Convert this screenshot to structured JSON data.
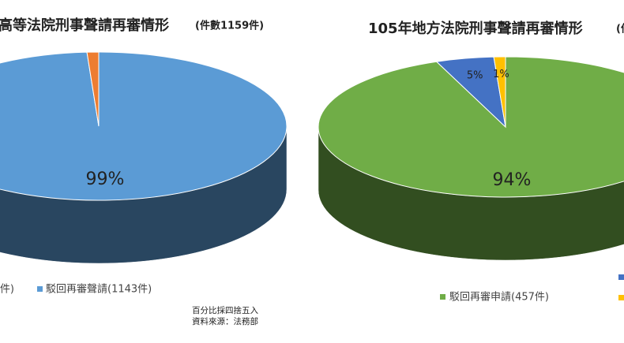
{
  "chart_data": [
    {
      "type": "pie",
      "title": "高等法院刑事聲請再審情形",
      "subtitle": "(件數1159件)",
      "categories": [
        "駁回再審聲請(1143件)",
        "件)"
      ],
      "values": [
        99,
        1
      ],
      "value_labels": [
        "99%",
        null
      ],
      "colors": [
        "#5b9bd5",
        "#ed7d31"
      ]
    },
    {
      "type": "pie",
      "title": "105年地方法院刑事聲請再審情形",
      "subtitle": "(件",
      "categories": [
        "駁回再審申請(457件)",
        null,
        null
      ],
      "values": [
        94,
        5,
        1
      ],
      "value_labels": [
        "94%",
        "5%",
        "1%"
      ],
      "colors": [
        "#70ad47",
        "#4472c4",
        "#ffc000"
      ]
    }
  ],
  "notes": [
    "百分比採四捨五入",
    "資料來源：法務部"
  ]
}
